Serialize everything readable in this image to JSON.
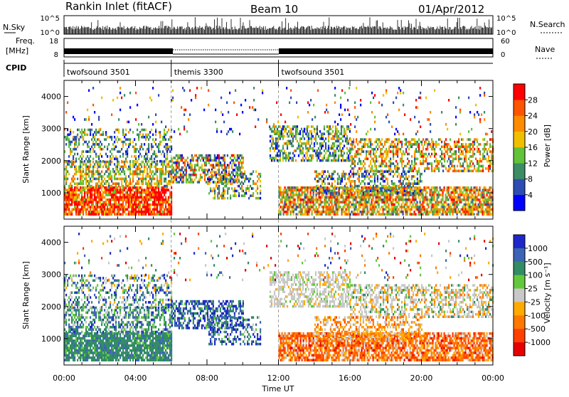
{
  "header": {
    "station": "Rankin Inlet (fitACF)",
    "beam": "Beam 10",
    "date": "01/Apr/2012"
  },
  "top_strip": {
    "nsky_label": "N.Sky",
    "nsearch_label": "N.Search",
    "left_ticks": [
      "10^5",
      "10^0"
    ],
    "right_ticks": [
      "10^5",
      "10^0"
    ],
    "freq_label_1": "Freq.",
    "freq_label_2": "[MHz]",
    "freq_ticks": [
      "18",
      "8"
    ],
    "nave_label": "Nave",
    "nave_ticks": [
      "60",
      "0"
    ],
    "cpid_label": "CPID",
    "cpid_segments": [
      {
        "name": "twofsound 3501",
        "start_hour": 0,
        "end_hour": 6
      },
      {
        "name": "themis 3300",
        "start_hour": 6,
        "end_hour": 12
      },
      {
        "name": "twofsound 3501",
        "start_hour": 12,
        "end_hour": 24
      }
    ]
  },
  "chart_data": [
    {
      "type": "heatmap",
      "panel": "power",
      "ylabel": "Slant Range [km]",
      "xlim": [
        0,
        24
      ],
      "ylim": [
        180,
        4500
      ],
      "yticks": [
        1000,
        2000,
        3000,
        4000
      ],
      "colorbar": {
        "label": "Power [dB]",
        "ticks": [
          "4",
          "8",
          "12",
          "16",
          "20",
          "24",
          "28"
        ],
        "colors": [
          "#0000ff",
          "#2d4db3",
          "#3c8c64",
          "#62c23a",
          "#f0c000",
          "#ff8c00",
          "#ff5500",
          "#ff0000"
        ]
      }
    },
    {
      "type": "heatmap",
      "panel": "velocity",
      "ylabel": "Slant Range [km]",
      "xlabel": "Time UT",
      "xlim": [
        0,
        24
      ],
      "ylim": [
        180,
        4500
      ],
      "yticks": [
        1000,
        2000,
        3000,
        4000
      ],
      "xticks": [
        "00:00",
        "04:00",
        "08:00",
        "12:00",
        "16:00",
        "20:00",
        "00:00"
      ],
      "colorbar": {
        "label": "Velocity [m s⁻¹]",
        "ticks": [
          "1000",
          "500",
          "100",
          "25",
          "-25",
          "-100",
          "-500",
          "-1000"
        ],
        "colors": [
          "#1e28c8",
          "#3c64b4",
          "#328c64",
          "#64c83c",
          "#c8c8c8",
          "#ffaa00",
          "#ff7800",
          "#ff4000",
          "#e60000"
        ]
      }
    }
  ]
}
